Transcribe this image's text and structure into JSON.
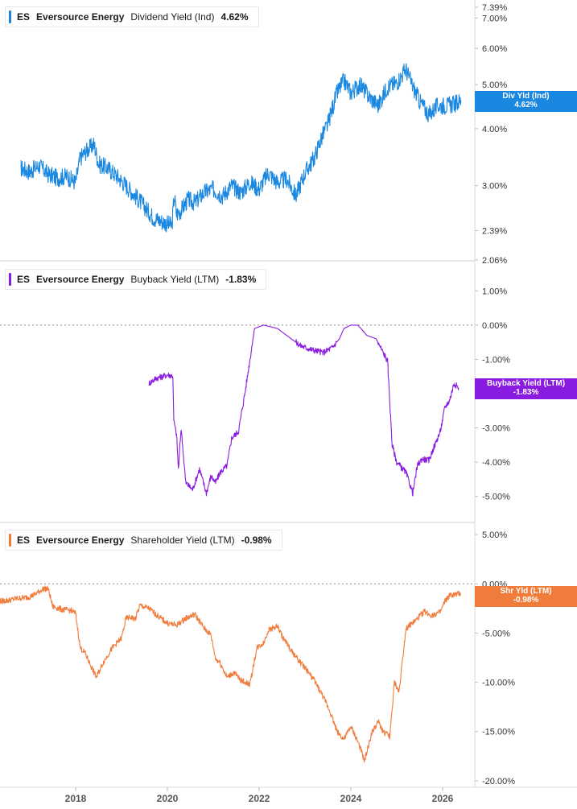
{
  "panels": [
    {
      "ticker": "ES",
      "company": "Eversource Energy",
      "metric": "Dividend Yield (Ind)",
      "value": "4.62%",
      "color": "#1a87e0",
      "tag_label": "Div Yld (Ind)",
      "tag_value": "4.62%"
    },
    {
      "ticker": "ES",
      "company": "Eversource Energy",
      "metric": "Buyback Yield (LTM)",
      "value": "-1.83%",
      "color": "#8a1be0",
      "tag_label": "Buyback Yield (LTM)",
      "tag_value": "-1.83%"
    },
    {
      "ticker": "ES",
      "company": "Eversource Energy",
      "metric": "Shareholder Yield (LTM)",
      "value": "-0.98%",
      "color": "#f07c3c",
      "tag_label": "Shr Yld (LTM)",
      "tag_value": "-0.98%"
    }
  ],
  "x_axis": {
    "ticks": [
      "2018",
      "2020",
      "2022",
      "2024",
      "2026"
    ]
  },
  "chart_data": [
    {
      "type": "line",
      "title": "",
      "series": [
        {
          "name": "Dividend Yield (Ind)",
          "x": [
            2016.8,
            2017.0,
            2017.2,
            2017.4,
            2017.6,
            2017.8,
            2018.0,
            2018.1,
            2018.2,
            2018.4,
            2018.5,
            2018.7,
            2018.9,
            2019.1,
            2019.3,
            2019.5,
            2019.7,
            2019.9,
            2020.1,
            2020.15,
            2020.2,
            2020.3,
            2020.45,
            2020.6,
            2020.8,
            2021.0,
            2021.2,
            2021.4,
            2021.6,
            2021.8,
            2022.0,
            2022.2,
            2022.4,
            2022.6,
            2022.8,
            2023.0,
            2023.2,
            2023.35,
            2023.5,
            2023.7,
            2023.85,
            2024.0,
            2024.2,
            2024.4,
            2024.6,
            2024.8,
            2025.0,
            2025.2,
            2025.35,
            2025.5,
            2025.7,
            2025.9,
            2026.1,
            2026.3,
            2026.4
          ],
          "y": [
            3.28,
            3.22,
            3.32,
            3.18,
            3.12,
            3.15,
            3.05,
            3.45,
            3.55,
            3.7,
            3.35,
            3.28,
            3.15,
            3.0,
            2.85,
            2.7,
            2.55,
            2.5,
            2.45,
            2.85,
            2.6,
            2.65,
            2.8,
            2.75,
            2.9,
            2.95,
            2.85,
            3.0,
            2.9,
            3.05,
            2.95,
            3.2,
            3.05,
            3.1,
            2.85,
            3.2,
            3.45,
            3.8,
            4.1,
            4.8,
            5.1,
            4.8,
            5.0,
            4.7,
            4.5,
            4.95,
            5.05,
            5.4,
            4.95,
            4.6,
            4.3,
            4.5,
            4.5,
            4.55,
            4.62
          ],
          "color": "#1a87e0"
        }
      ],
      "y_scale": "log",
      "ylim": [
        2.06,
        7.39
      ],
      "y_ticks": [
        "7.39%",
        "7.00%",
        "6.00%",
        "5.00%",
        "4.00%",
        "3.00%",
        "2.39%",
        "2.06%"
      ],
      "y_tick_values": [
        7.39,
        7.0,
        6.0,
        5.0,
        4.0,
        3.0,
        2.39,
        2.06
      ]
    },
    {
      "type": "line",
      "title": "",
      "series": [
        {
          "name": "Buyback Yield (LTM)",
          "x": [
            2019.6,
            2019.75,
            2019.9,
            2020.0,
            2020.12,
            2020.14,
            2020.2,
            2020.24,
            2020.3,
            2020.4,
            2020.55,
            2020.7,
            2020.85,
            2020.95,
            2021.05,
            2021.15,
            2021.3,
            2021.4,
            2021.55,
            2021.7,
            2021.9,
            2022.1,
            2022.4,
            2022.6,
            2022.9,
            2023.1,
            2023.4,
            2023.6,
            2023.75,
            2023.85,
            2024.0,
            2024.15,
            2024.35,
            2024.55,
            2024.8,
            2024.9,
            2025.0,
            2025.2,
            2025.35,
            2025.45,
            2025.55,
            2025.7,
            2025.8,
            2025.95,
            2026.05,
            2026.15,
            2026.25,
            2026.35
          ],
          "y": [
            -1.7,
            -1.55,
            -1.5,
            -1.45,
            -1.48,
            -2.8,
            -3.2,
            -4.2,
            -3.0,
            -4.6,
            -4.8,
            -4.2,
            -4.9,
            -4.4,
            -4.6,
            -4.3,
            -4.1,
            -3.3,
            -3.1,
            -1.9,
            -0.1,
            0.0,
            -0.1,
            -0.3,
            -0.6,
            -0.7,
            -0.8,
            -0.65,
            -0.4,
            -0.1,
            0.0,
            0.0,
            -0.3,
            -0.4,
            -1.05,
            -3.5,
            -4.0,
            -4.3,
            -4.9,
            -4.1,
            -3.9,
            -3.95,
            -3.6,
            -3.1,
            -2.4,
            -2.2,
            -1.7,
            -1.83
          ],
          "color": "#8a1be0"
        }
      ],
      "ylim": [
        -5.5,
        1.5
      ],
      "y_ticks": [
        "1.00%",
        "0.00%",
        "-1.00%",
        "-2.00%",
        "-3.00%",
        "-4.00%",
        "-5.00%"
      ],
      "y_tick_values": [
        1,
        0,
        -1,
        -2,
        -3,
        -4,
        -5
      ],
      "reference_line": 0
    },
    {
      "type": "line",
      "title": "",
      "series": [
        {
          "name": "Shareholder Yield (LTM)",
          "x": [
            2016.3,
            2016.5,
            2016.7,
            2016.9,
            2017.0,
            2017.1,
            2017.2,
            2017.3,
            2017.4,
            2017.5,
            2017.7,
            2017.9,
            2018.0,
            2018.1,
            2018.2,
            2018.4,
            2018.45,
            2018.6,
            2018.8,
            2019.0,
            2019.1,
            2019.2,
            2019.3,
            2019.4,
            2019.6,
            2019.8,
            2020.0,
            2020.2,
            2020.4,
            2020.6,
            2020.8,
            2020.95,
            2021.05,
            2021.15,
            2021.3,
            2021.45,
            2021.6,
            2021.8,
            2021.95,
            2022.1,
            2022.2,
            2022.4,
            2022.5,
            2022.7,
            2022.9,
            2023.0,
            2023.2,
            2023.4,
            2023.55,
            2023.7,
            2023.85,
            2024.0,
            2024.15,
            2024.3,
            2024.45,
            2024.6,
            2024.7,
            2024.85,
            2024.95,
            2025.05,
            2025.2,
            2025.4,
            2025.6,
            2025.75,
            2025.95,
            2026.05,
            2026.15,
            2026.3,
            2026.4
          ],
          "y": [
            -1.8,
            -1.7,
            -1.5,
            -1.4,
            -1.3,
            -1.1,
            -0.8,
            -0.5,
            -0.5,
            -2.3,
            -2.6,
            -2.7,
            -3.0,
            -6.5,
            -7.0,
            -9.0,
            -9.5,
            -8.0,
            -6.5,
            -5.5,
            -3.5,
            -3.4,
            -3.6,
            -2.2,
            -2.5,
            -3.3,
            -4.0,
            -4.2,
            -3.5,
            -3.1,
            -4.5,
            -5.2,
            -7.6,
            -8.0,
            -9.5,
            -9.0,
            -9.8,
            -10.2,
            -6.5,
            -6.0,
            -4.7,
            -4.3,
            -5.3,
            -6.8,
            -8.0,
            -8.5,
            -9.8,
            -11.5,
            -13.0,
            -15.0,
            -15.8,
            -14.5,
            -16.0,
            -18.0,
            -15.2,
            -14.0,
            -15.0,
            -15.5,
            -10.0,
            -11.0,
            -4.5,
            -3.8,
            -2.8,
            -3.2,
            -2.9,
            -1.8,
            -1.2,
            -1.1,
            -0.98
          ],
          "color": "#f07c3c"
        }
      ],
      "ylim": [
        -20.5,
        5.5
      ],
      "y_ticks": [
        "5.00%",
        "0.00%",
        "-5.00%",
        "-10.00%",
        "-15.00%",
        "-20.00%"
      ],
      "y_tick_values": [
        5,
        0,
        -5,
        -10,
        -15,
        -20
      ],
      "reference_line": 0
    }
  ]
}
